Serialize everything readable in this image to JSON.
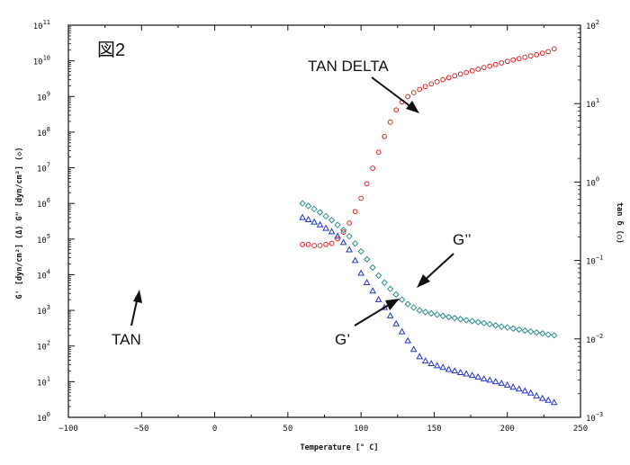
{
  "figure_label": "図2",
  "annotations": {
    "tan_delta": "TAN DELTA",
    "g_double_prime": "G’’",
    "g_prime": "G’",
    "tan": "TAN"
  },
  "axes": {
    "x_title": "Temperature [° C]",
    "y_left_title": "G' [dyn/cm²] (Δ)   G\" [dyn/cm²] (◇)",
    "y_right_title": "tan δ (○)",
    "x_ticks": [
      "−100",
      "−50",
      "0",
      "50",
      "100",
      "150",
      "200",
      "250"
    ],
    "y_left_ticks": [
      {
        "base": "10",
        "exp": "0"
      },
      {
        "base": "10",
        "exp": "1"
      },
      {
        "base": "10",
        "exp": "2"
      },
      {
        "base": "10",
        "exp": "3"
      },
      {
        "base": "10",
        "exp": "4"
      },
      {
        "base": "10",
        "exp": "5"
      },
      {
        "base": "10",
        "exp": "6"
      },
      {
        "base": "10",
        "exp": "7"
      },
      {
        "base": "10",
        "exp": "8"
      },
      {
        "base": "10",
        "exp": "9"
      },
      {
        "base": "10",
        "exp": "10"
      },
      {
        "base": "10",
        "exp": "11"
      }
    ],
    "y_right_ticks": [
      {
        "base": "10",
        "exp": "−3"
      },
      {
        "base": "10",
        "exp": "−2"
      },
      {
        "base": "10",
        "exp": "−1"
      },
      {
        "base": "10",
        "exp": "0"
      },
      {
        "base": "10",
        "exp": "1"
      },
      {
        "base": "10",
        "exp": "2"
      }
    ]
  },
  "chart_data": {
    "type": "scatter",
    "xlabel": "Temperature [° C]",
    "ylabel": "G' [dyn/cm²] (Δ)   G\" [dyn/cm²] (◇)",
    "y2label": "tan δ (○)",
    "xlim": [
      -100,
      250
    ],
    "ylim_log10": [
      0,
      11
    ],
    "y2lim_log10": [
      -3,
      2
    ],
    "yscale": "log",
    "y2scale": "log",
    "grid": false,
    "colors": {
      "g_prime": "#2233cc",
      "g_double_prime": "#2f8f8f",
      "tan_delta": "#dd2222"
    },
    "series": [
      {
        "marker": "triangle",
        "axis": "left",
        "x": [
          60,
          64,
          68,
          72,
          76,
          80,
          84,
          88,
          92,
          96,
          100,
          104,
          108,
          112,
          116,
          120,
          124,
          128,
          132,
          136,
          140,
          144,
          148,
          152,
          156,
          160,
          164,
          168,
          172,
          176,
          180,
          184,
          188,
          192,
          196,
          200,
          204,
          208,
          212,
          216,
          220,
          224,
          228,
          232
        ],
        "values": [
          400000,
          350000,
          300000,
          250000,
          200000,
          160000,
          120000,
          80000,
          50000,
          25000,
          11000,
          6000,
          3500,
          2000,
          1200,
          700,
          420,
          250,
          140,
          80,
          50,
          38,
          32,
          28,
          25,
          22,
          20,
          18,
          16.5,
          15,
          13.5,
          12,
          11,
          10,
          9,
          8,
          7,
          6.2,
          5.5,
          4.8,
          4,
          3.4,
          3,
          2.6
        ]
      },
      {
        "marker": "diamond",
        "axis": "left",
        "x": [
          60,
          64,
          68,
          72,
          76,
          80,
          84,
          88,
          92,
          96,
          100,
          104,
          108,
          112,
          116,
          120,
          124,
          128,
          132,
          136,
          140,
          144,
          148,
          152,
          156,
          160,
          164,
          168,
          172,
          176,
          180,
          184,
          188,
          192,
          196,
          200,
          204,
          208,
          212,
          216,
          220,
          224,
          228,
          232
        ],
        "values": [
          1000000,
          850000,
          700000,
          560000,
          440000,
          340000,
          250000,
          180000,
          120000,
          75000,
          45000,
          27000,
          16000,
          9500,
          6000,
          4000,
          2800,
          2000,
          1500,
          1200,
          1000,
          900,
          820,
          760,
          700,
          650,
          610,
          570,
          530,
          500,
          470,
          440,
          410,
          380,
          350,
          330,
          310,
          290,
          270,
          255,
          240,
          225,
          210,
          200
        ]
      },
      {
        "marker": "circle",
        "axis": "right",
        "x": [
          60,
          64,
          68,
          72,
          76,
          80,
          84,
          88,
          92,
          96,
          100,
          104,
          108,
          112,
          116,
          120,
          124,
          128,
          132,
          136,
          140,
          144,
          148,
          152,
          156,
          160,
          164,
          168,
          172,
          176,
          180,
          184,
          188,
          192,
          196,
          200,
          204,
          208,
          212,
          216,
          220,
          224,
          228,
          232
        ],
        "values": [
          0.16,
          0.16,
          0.155,
          0.155,
          0.16,
          0.165,
          0.19,
          0.23,
          0.3,
          0.42,
          0.62,
          0.95,
          1.5,
          2.4,
          3.8,
          5.8,
          8.3,
          10.5,
          12.3,
          13.8,
          15.2,
          16.5,
          17.8,
          19,
          20.2,
          21.4,
          22.6,
          23.8,
          25,
          26.2,
          27.5,
          28.8,
          30,
          31.5,
          33,
          34.5,
          36,
          37.5,
          39,
          40.5,
          42,
          44,
          46,
          50
        ]
      }
    ]
  }
}
